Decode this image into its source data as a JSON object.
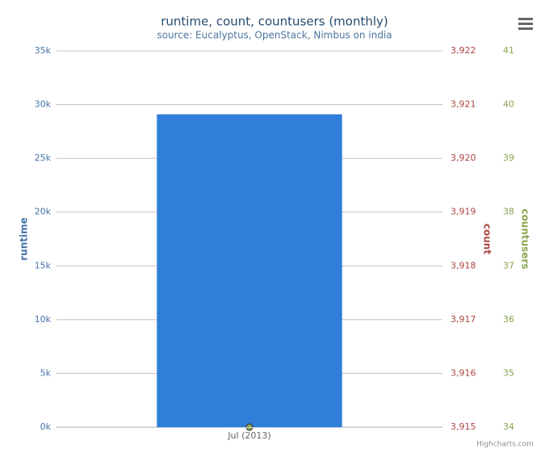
{
  "chart_data": {
    "type": "bar",
    "title": "runtime, count, countusers (monthly)",
    "subtitle": "source: Eucalyptus, OpenStack, Nimbus on india",
    "credit": "Highcharts.com",
    "categories": [
      "Jul (2013)"
    ],
    "series": [
      {
        "name": "runtime",
        "type": "bar",
        "axis": "y",
        "color": "#2f7ed8",
        "values": [
          29100
        ]
      },
      {
        "name": "count",
        "type": "line",
        "axis": "y2",
        "color": "#aa4643",
        "values": [
          3915
        ]
      },
      {
        "name": "countusers",
        "type": "line",
        "axis": "y3",
        "color": "#89a54e",
        "values": [
          34
        ]
      }
    ],
    "ylim": [
      0,
      35000
    ],
    "yticks": [
      {
        "value": 0,
        "label": "0k"
      },
      {
        "value": 5000,
        "label": "5k"
      },
      {
        "value": 10000,
        "label": "10k"
      },
      {
        "value": 15000,
        "label": "15k"
      },
      {
        "value": 20000,
        "label": "20k"
      },
      {
        "value": 25000,
        "label": "25k"
      },
      {
        "value": 30000,
        "label": "30k"
      },
      {
        "value": 35000,
        "label": "35k"
      }
    ],
    "y2lim": [
      3915,
      3922
    ],
    "y2ticks": [
      {
        "value": 3915,
        "label": "3,915"
      },
      {
        "value": 3916,
        "label": "3,916"
      },
      {
        "value": 3917,
        "label": "3,917"
      },
      {
        "value": 3918,
        "label": "3,918"
      },
      {
        "value": 3919,
        "label": "3,919"
      },
      {
        "value": 3920,
        "label": "3,920"
      },
      {
        "value": 3921,
        "label": "3,921"
      },
      {
        "value": 3922,
        "label": "3,922"
      }
    ],
    "y3lim": [
      34,
      41
    ],
    "y3ticks": [
      34,
      35,
      36,
      37,
      38,
      39,
      40,
      41
    ],
    "grid": true
  }
}
